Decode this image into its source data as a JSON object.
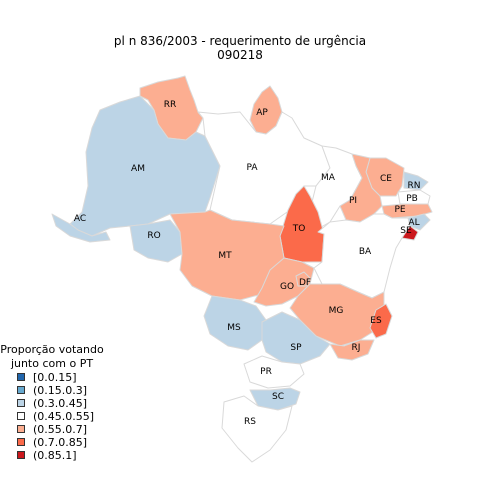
{
  "title": {
    "line1": "pl   n  836/2003 - requerimento de urgência",
    "line2": "090218"
  },
  "legend": {
    "title_line1": "Proporção votando",
    "title_line2": "junto com o PT",
    "items": [
      {
        "label": "[0.0.15]",
        "color": "#2166ac"
      },
      {
        "label": "(0.15.0.3]",
        "color": "#67a9cf"
      },
      {
        "label": "(0.3.0.45]",
        "color": "#bcd4e6"
      },
      {
        "label": "(0.45.0.55]",
        "color": "#ffffff"
      },
      {
        "label": "(0.55.0.7]",
        "color": "#fcae91"
      },
      {
        "label": "(0.7.0.85]",
        "color": "#fb6a4a"
      },
      {
        "label": "(0.85.1]",
        "color": "#cb181d"
      }
    ]
  },
  "states": [
    {
      "abbr": "RR",
      "class": "(0.55.0.7]"
    },
    {
      "abbr": "AP",
      "class": "(0.55.0.7]"
    },
    {
      "abbr": "AM",
      "class": "(0.3.0.45]"
    },
    {
      "abbr": "PA",
      "class": "(0.45.0.55]"
    },
    {
      "abbr": "MA",
      "class": "(0.45.0.55]"
    },
    {
      "abbr": "CE",
      "class": "(0.55.0.7]"
    },
    {
      "abbr": "RN",
      "class": "(0.3.0.45]"
    },
    {
      "abbr": "PB",
      "class": "(0.45.0.55]"
    },
    {
      "abbr": "PE",
      "class": "(0.55.0.7]"
    },
    {
      "abbr": "AL",
      "class": "(0.3.0.45]"
    },
    {
      "abbr": "SE",
      "class": "(0.85.1]"
    },
    {
      "abbr": "PI",
      "class": "(0.55.0.7]"
    },
    {
      "abbr": "AC",
      "class": "(0.3.0.45]"
    },
    {
      "abbr": "RO",
      "class": "(0.3.0.45]"
    },
    {
      "abbr": "TO",
      "class": "(0.7.0.85]"
    },
    {
      "abbr": "BA",
      "class": "(0.45.0.55]"
    },
    {
      "abbr": "MT",
      "class": "(0.55.0.7]"
    },
    {
      "abbr": "GO",
      "class": "(0.55.0.7]"
    },
    {
      "abbr": "DF",
      "class": "(0.55.0.7]"
    },
    {
      "abbr": "MG",
      "class": "(0.55.0.7]"
    },
    {
      "abbr": "ES",
      "class": "(0.7.0.85]"
    },
    {
      "abbr": "MS",
      "class": "(0.3.0.45]"
    },
    {
      "abbr": "SP",
      "class": "(0.3.0.45]"
    },
    {
      "abbr": "RJ",
      "class": "(0.55.0.7]"
    },
    {
      "abbr": "PR",
      "class": "(0.45.0.55]"
    },
    {
      "abbr": "SC",
      "class": "(0.3.0.45]"
    },
    {
      "abbr": "RS",
      "class": "(0.45.0.55]"
    }
  ]
}
